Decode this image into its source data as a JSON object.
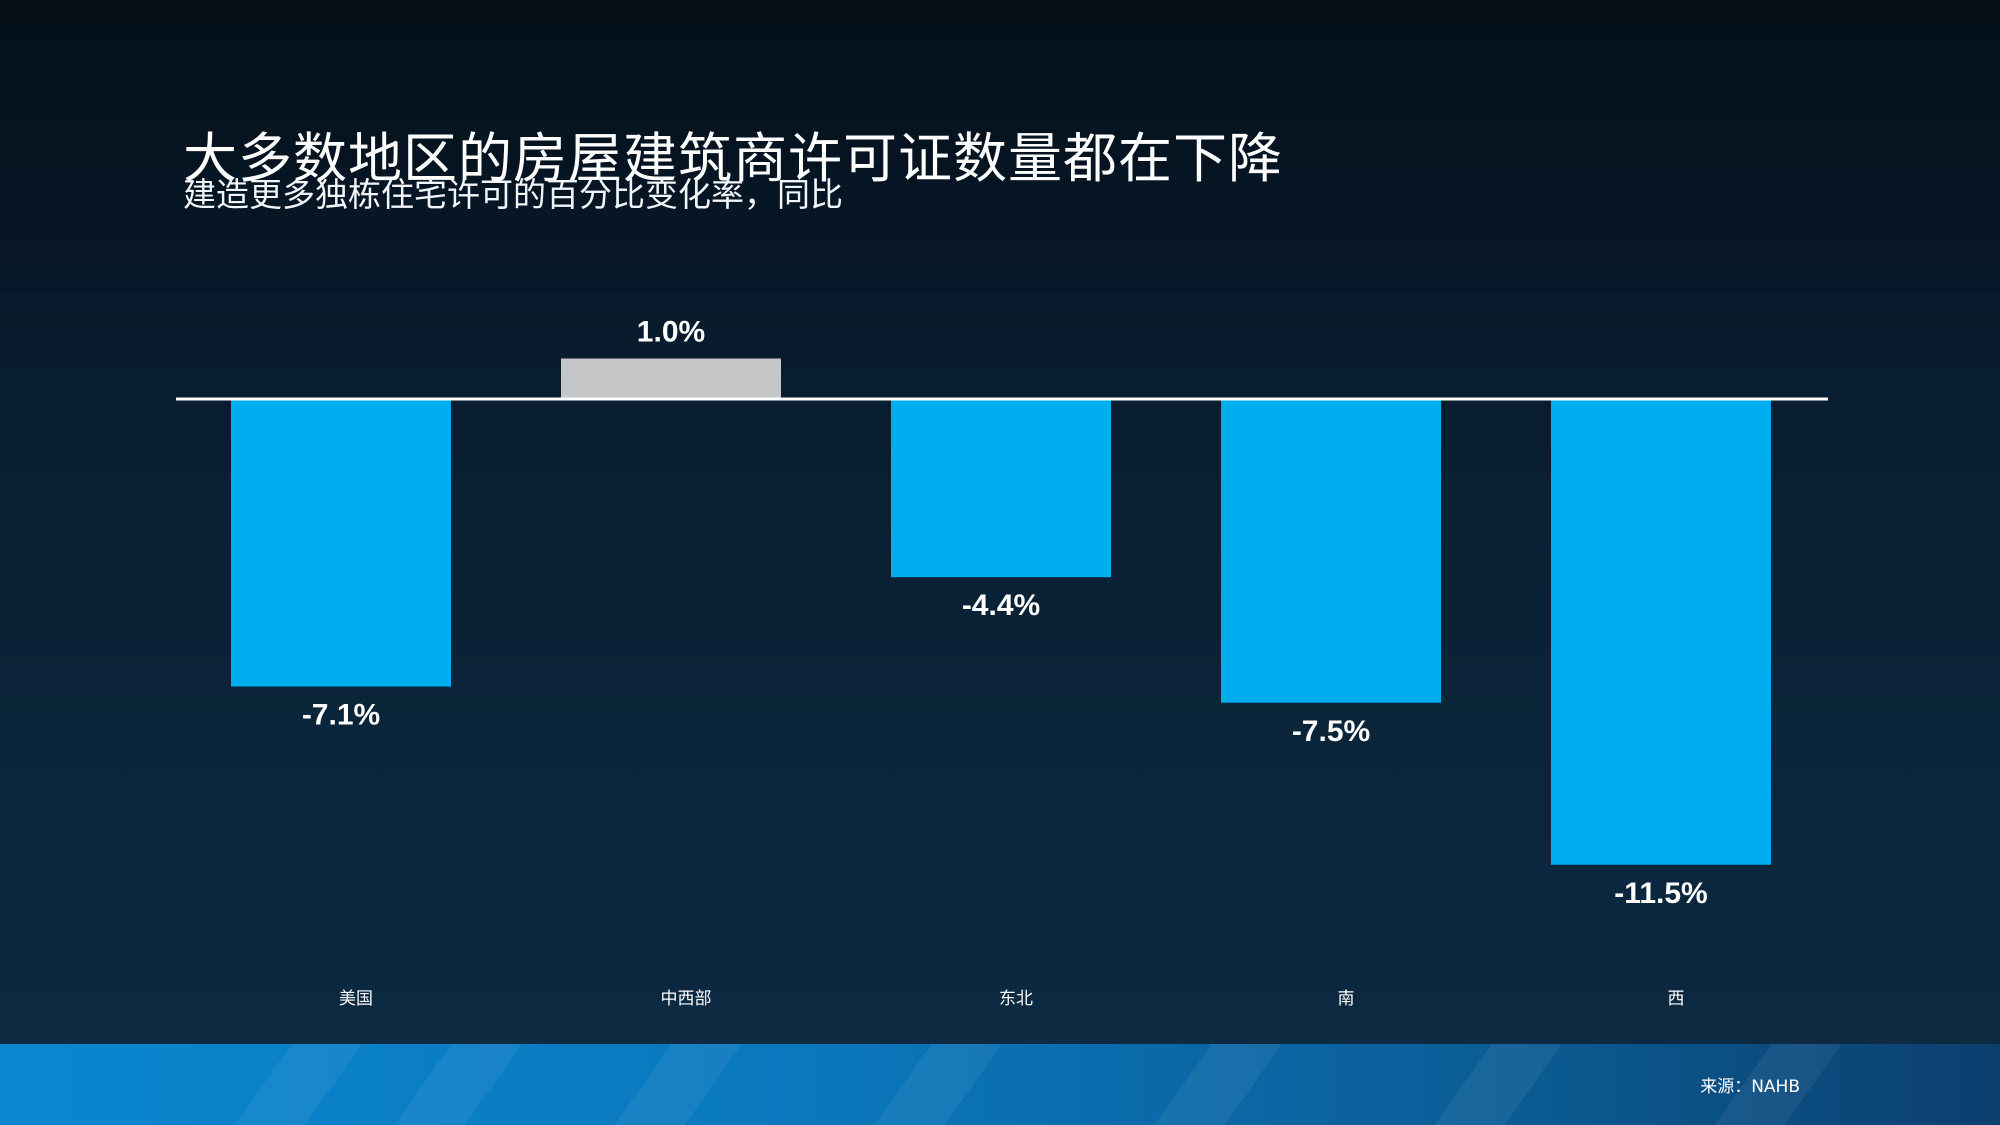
{
  "title": "大多数地区的房屋建筑商许可证数量都在下降",
  "subtitle": "建造更多独栋住宅许可的百分比变化率，同比",
  "source": "来源：NAHB",
  "colors": {
    "negative": "#00AEEF",
    "positive": "#C4C6C8",
    "axis": "#FFFFFF"
  },
  "chart_data": {
    "type": "bar",
    "title": "大多数地区的房屋建筑商许可证数量都在下降",
    "subtitle": "建造更多独栋住宅许可的百分比变化率，同比",
    "categories": [
      "美国",
      "中西部",
      "东北",
      "南",
      "西"
    ],
    "values": [
      -7.1,
      1.0,
      -4.4,
      -7.5,
      -11.5
    ],
    "value_labels": [
      "-7.1%",
      "1.0%",
      "-4.4%",
      "-7.5%",
      "-11.5%"
    ],
    "unit": "%",
    "xlabel": "",
    "ylabel": "",
    "grid": false,
    "legend": "none",
    "baseline": 0
  }
}
